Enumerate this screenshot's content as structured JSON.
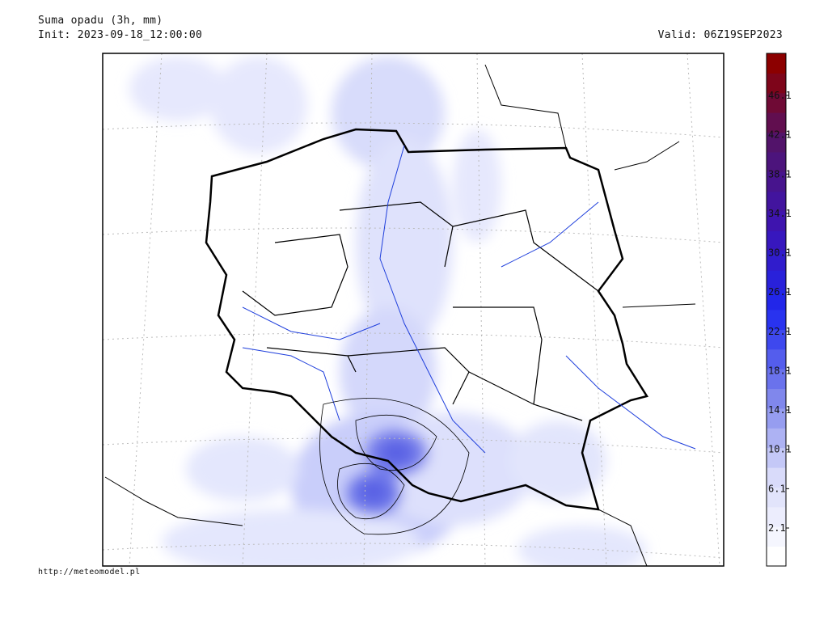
{
  "header": {
    "title": "Suma opadu (3h, mm)",
    "init": "Init: 2023-09-18_12:00:00",
    "valid": "Valid: 06Z19SEP2023"
  },
  "colorbar": {
    "ticks": [
      2.1,
      6.1,
      10.1,
      14.1,
      18.1,
      22.1,
      26.1,
      30.1,
      34.1,
      38.1,
      42.1,
      46.1
    ]
  },
  "footer": {
    "url": "http://meteomodel.pl"
  }
}
